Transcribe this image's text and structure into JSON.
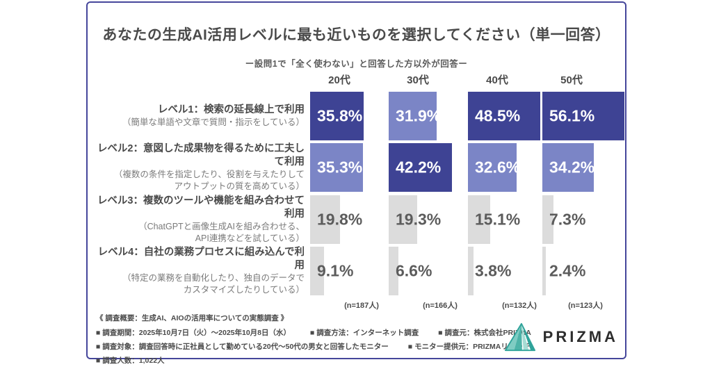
{
  "header": {
    "title": "あなたの生成AI活用レベルに最も近いものを選択してください（単一回答）",
    "subtitle": "ー設問1で「全く使わない」と回答した方以外が回答ー"
  },
  "chart_data": {
    "type": "bar",
    "orientation": "horizontal",
    "title": "あなたの生成AI活用レベルに最も近いものを選択してください（単一回答）",
    "note": "ー設問1で「全く使わない」と回答した方以外が回答ー",
    "columns": [
      "20代",
      "30代",
      "40代",
      "50代"
    ],
    "sample_sizes": [
      "(n=187人)",
      "(n=166人)",
      "(n=132人)",
      "(n=123人)"
    ],
    "value_suffix": "%",
    "value_range": [
      0,
      60
    ],
    "rows": [
      {
        "label": "レベル1：検索の延長線上で利用",
        "desc": [
          "（簡単な単語や文章で質問・指示をしている）"
        ],
        "values": [
          35.8,
          31.9,
          48.5,
          56.1
        ],
        "styles": [
          "dark",
          "light",
          "dark",
          "dark"
        ]
      },
      {
        "label": "レベル2：意図した成果物を得るために工夫して利用",
        "desc": [
          "（複数の条件を指定したり、役割を与えたりして",
          "アウトプットの質を高めている）"
        ],
        "values": [
          35.3,
          42.2,
          32.6,
          34.2
        ],
        "styles": [
          "light",
          "dark",
          "light",
          "light"
        ]
      },
      {
        "label": "レベル3：複数のツールや機能を組み合わせて利用",
        "desc": [
          "（ChatGPTと画像生成AIを組み合わせる、",
          "API連携などを試している）"
        ],
        "values": [
          19.8,
          19.3,
          15.1,
          7.3
        ],
        "styles": [
          "gray",
          "gray",
          "gray",
          "gray"
        ]
      },
      {
        "label": "レベル4：自社の業務プロセスに組み込んで利用",
        "desc": [
          "（特定の業務を自動化したり、独自のデータで",
          "カスタマイズしたりしている）"
        ],
        "values": [
          9.1,
          6.6,
          3.8,
          2.4
        ],
        "styles": [
          "gray",
          "gray",
          "gray",
          "gray"
        ]
      }
    ],
    "colors": {
      "dark": "#3E4394",
      "light": "#7B85C6",
      "gray": "#DCDCDC",
      "frame_border": "#45469B"
    },
    "legend_position": "none",
    "grid": false
  },
  "footer": {
    "heading": "《 調査概要：生成AI、AIOの活用率についての実態調査 》",
    "lines": [
      [
        "■ 調査期間：2025年10月7日（火）～2025年10月8日（水）",
        "■ 調査方法：インターネット調査",
        "■ 調査元：株式会社PRIZMA"
      ],
      [
        "■ 調査対象：調査回答時に正社員として勤めている20代～50代の男女と回答したモニター",
        "■ モニター提供元：PRIZMAリサーチ"
      ],
      [
        "■ 調査人数：1,022人"
      ]
    ]
  },
  "logo": {
    "text": "PRIZMA",
    "icon": "prism-triangle-icon",
    "icon_colors": [
      "#2FA39A",
      "#4DB3A8",
      "#7FCCC3",
      "#A5DCD4"
    ]
  }
}
